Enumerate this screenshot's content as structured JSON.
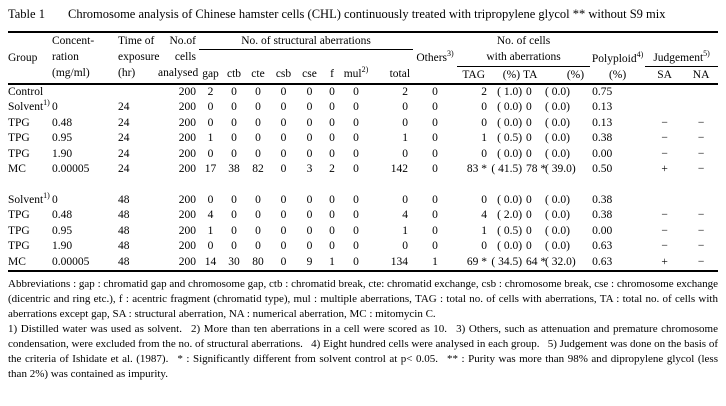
{
  "caption": {
    "label": "Table 1",
    "text": "Chromosome analysis of Chinese hamster cells (CHL) continuously treated with tripropylene glycol ** without S9 mix"
  },
  "header": {
    "group": "Group",
    "concentration": [
      "Concent-",
      "ration",
      "(mg/ml)"
    ],
    "time": [
      "Time of",
      "exposure",
      "(hr)"
    ],
    "cells": [
      "No.of",
      "cells",
      "analysed"
    ],
    "structural_span": "No. of structural aberrations",
    "gap": "gap",
    "ctb": "ctb",
    "cte": "cte",
    "csb": "csb",
    "cse": "cse",
    "f": "f",
    "mul": {
      "text": "mul",
      "sup": "2)"
    },
    "total": "total",
    "others": {
      "text": "Others",
      "sup": "3)"
    },
    "cells_with_aberrations_span": [
      "No. of cells",
      "with aberrations"
    ],
    "tag": "TAG",
    "tag_pct": "(%)",
    "ta": "TA",
    "ta_pct": "(%)",
    "polyploid": {
      "text": "Polyploid",
      "sup": "4)",
      "unit": "(%)"
    },
    "judgement": {
      "text": "Judgement",
      "sup": "5)"
    },
    "sa": "SA",
    "na": "NA"
  },
  "rows": [
    {
      "group": "Control",
      "sup": "",
      "conc": "",
      "time": "",
      "cells": "200",
      "ab": [
        "2",
        "0",
        "0",
        "0",
        "0",
        "0",
        "0"
      ],
      "total": "2",
      "others": "0",
      "tag": "2",
      "tagp": "( 1.0)",
      "ta": "0",
      "tap": "( 0.0)",
      "poly": "0.75",
      "sa": "",
      "na": ""
    },
    {
      "group": "Solvent",
      "sup": "1)",
      "conc": "0",
      "time": "24",
      "cells": "200",
      "ab": [
        "0",
        "0",
        "0",
        "0",
        "0",
        "0",
        "0"
      ],
      "total": "0",
      "others": "0",
      "tag": "0",
      "tagp": "( 0.0)",
      "ta": "0",
      "tap": "( 0.0)",
      "poly": "0.13",
      "sa": "",
      "na": ""
    },
    {
      "group": "TPG",
      "sup": "",
      "conc": "0.48",
      "time": "24",
      "cells": "200",
      "ab": [
        "0",
        "0",
        "0",
        "0",
        "0",
        "0",
        "0"
      ],
      "total": "0",
      "others": "0",
      "tag": "0",
      "tagp": "( 0.0)",
      "ta": "0",
      "tap": "( 0.0)",
      "poly": "0.13",
      "sa": "−",
      "na": "−"
    },
    {
      "group": "TPG",
      "sup": "",
      "conc": "0.95",
      "time": "24",
      "cells": "200",
      "ab": [
        "1",
        "0",
        "0",
        "0",
        "0",
        "0",
        "0"
      ],
      "total": "1",
      "others": "0",
      "tag": "1",
      "tagp": "( 0.5)",
      "ta": "0",
      "tap": "( 0.0)",
      "poly": "0.38",
      "sa": "−",
      "na": "−"
    },
    {
      "group": "TPG",
      "sup": "",
      "conc": "1.90",
      "time": "24",
      "cells": "200",
      "ab": [
        "0",
        "0",
        "0",
        "0",
        "0",
        "0",
        "0"
      ],
      "total": "0",
      "others": "0",
      "tag": "0",
      "tagp": "( 0.0)",
      "ta": "0",
      "tap": "( 0.0)",
      "poly": "0.00",
      "sa": "−",
      "na": "−"
    },
    {
      "group": "MC",
      "sup": "",
      "conc": "0.00005",
      "time": "24",
      "cells": "200",
      "ab": [
        "17",
        "38",
        "82",
        "0",
        "3",
        "2",
        "0"
      ],
      "total": "142",
      "others": "0",
      "tag": "83 *",
      "tagp": "( 41.5)",
      "ta": "78 *",
      "tap": "( 39.0)",
      "poly": "0.50",
      "sa": "+",
      "na": "−"
    },
    {
      "spacer": true
    },
    {
      "group": "Solvent",
      "sup": "1)",
      "conc": "0",
      "time": "48",
      "cells": "200",
      "ab": [
        "0",
        "0",
        "0",
        "0",
        "0",
        "0",
        "0"
      ],
      "total": "0",
      "others": "0",
      "tag": "0",
      "tagp": "( 0.0)",
      "ta": "0",
      "tap": "( 0.0)",
      "poly": "0.38",
      "sa": "",
      "na": ""
    },
    {
      "group": "TPG",
      "sup": "",
      "conc": "0.48",
      "time": "48",
      "cells": "200",
      "ab": [
        "4",
        "0",
        "0",
        "0",
        "0",
        "0",
        "0"
      ],
      "total": "4",
      "others": "0",
      "tag": "4",
      "tagp": "( 2.0)",
      "ta": "0",
      "tap": "( 0.0)",
      "poly": "0.38",
      "sa": "−",
      "na": "−"
    },
    {
      "group": "TPG",
      "sup": "",
      "conc": "0.95",
      "time": "48",
      "cells": "200",
      "ab": [
        "1",
        "0",
        "0",
        "0",
        "0",
        "0",
        "0"
      ],
      "total": "1",
      "others": "0",
      "tag": "1",
      "tagp": "( 0.5)",
      "ta": "0",
      "tap": "( 0.0)",
      "poly": "0.00",
      "sa": "−",
      "na": "−"
    },
    {
      "group": "TPG",
      "sup": "",
      "conc": "1.90",
      "time": "48",
      "cells": "200",
      "ab": [
        "0",
        "0",
        "0",
        "0",
        "0",
        "0",
        "0"
      ],
      "total": "0",
      "others": "0",
      "tag": "0",
      "tagp": "( 0.0)",
      "ta": "0",
      "tap": "( 0.0)",
      "poly": "0.63",
      "sa": "−",
      "na": "−"
    },
    {
      "group": "MC",
      "sup": "",
      "conc": "0.00005",
      "time": "48",
      "cells": "200",
      "ab": [
        "14",
        "30",
        "80",
        "0",
        "9",
        "1",
        "0"
      ],
      "total": "134",
      "others": "1",
      "tag": "69 *",
      "tagp": "( 34.5)",
      "ta": "64 *",
      "tap": "( 32.0)",
      "poly": "0.63",
      "sa": "+",
      "na": "−"
    }
  ],
  "footnotes": {
    "abbreviations": "Abbreviations : gap : chromatid gap and chromosome gap, ctb : chromatid break, cte: chromatid exchange, csb : chromosome break, cse : chromosome exchange (dicentric and ring etc.), f : acentric fragment (chromatid type), mul : multiple aberrations, TAG : total no. of cells with aberrations, TA : total no. of cells with aberrations except gap, SA : structural aberration, NA : numerical aberration, MC : mitomycin C.",
    "notes": "1) Distilled water was used as solvent.  2) More than ten aberrations in a cell were scored as 10.  3) Others, such as attenuation and premature chromosome condensation, were excluded from the no. of structural aberrations.  4) Eight hundred cells were analysed in each group.  5) Judgement was done on the basis of the criteria of Ishidate et al. (1987).  * : Significantly different from solvent control at p< 0.05.  ** : Purity was more than 98% and dipropylene glycol (less than 2%) was contained as impurity."
  }
}
